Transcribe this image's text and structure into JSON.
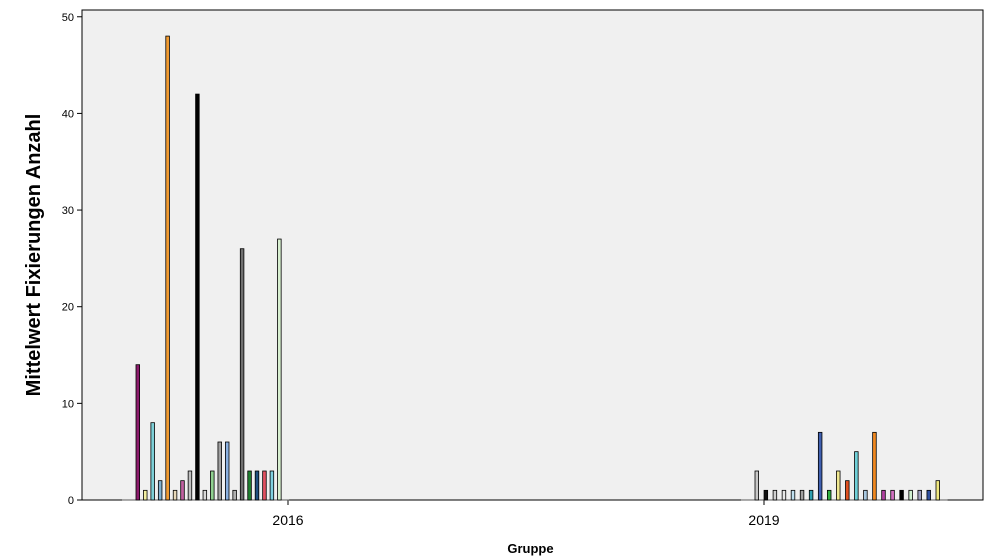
{
  "chart_data": {
    "type": "bar",
    "xlabel": "Gruppe",
    "ylabel": "Mittelwert Fixierungen Anzahl",
    "ylim": [
      0,
      50
    ],
    "yticks": [
      0,
      10,
      20,
      30,
      40,
      50
    ],
    "grid": false,
    "legend": "none",
    "categories": [
      "2016",
      "2019"
    ],
    "bars": [
      {
        "group": "2016",
        "value": 14,
        "color": "#8B1A6B"
      },
      {
        "group": "2016",
        "value": 1,
        "color": "#F2EFA0"
      },
      {
        "group": "2016",
        "value": 8,
        "color": "#7ED0D8"
      },
      {
        "group": "2016",
        "value": 2,
        "color": "#7FB0D0"
      },
      {
        "group": "2016",
        "value": 48,
        "color": "#F09A30"
      },
      {
        "group": "2016",
        "value": 1,
        "color": "#E8D8B8"
      },
      {
        "group": "2016",
        "value": 2,
        "color": "#C060A0"
      },
      {
        "group": "2016",
        "value": 3,
        "color": "#C0C0C0"
      },
      {
        "group": "2016",
        "value": 42,
        "color": "#000000"
      },
      {
        "group": "2016",
        "value": 1,
        "color": "#D8D8D8"
      },
      {
        "group": "2016",
        "value": 3,
        "color": "#90D090"
      },
      {
        "group": "2016",
        "value": 6,
        "color": "#A0A0A0"
      },
      {
        "group": "2016",
        "value": 6,
        "color": "#8AB0E0"
      },
      {
        "group": "2016",
        "value": 1,
        "color": "#B0B0B0"
      },
      {
        "group": "2016",
        "value": 26,
        "color": "#707070"
      },
      {
        "group": "2016",
        "value": 3,
        "color": "#208030"
      },
      {
        "group": "2016",
        "value": 3,
        "color": "#205080"
      },
      {
        "group": "2016",
        "value": 3,
        "color": "#E05060"
      },
      {
        "group": "2016",
        "value": 3,
        "color": "#80D0E0"
      },
      {
        "group": "2016",
        "value": 27,
        "color": "#D8F0D0"
      },
      {
        "group": "2019",
        "value": 3,
        "color": "#C8C8C8"
      },
      {
        "group": "2019",
        "value": 1,
        "color": "#101010"
      },
      {
        "group": "2019",
        "value": 1,
        "color": "#D0D0D0"
      },
      {
        "group": "2019",
        "value": 1,
        "color": "#E8E8E8"
      },
      {
        "group": "2019",
        "value": 1,
        "color": "#C0E0F0"
      },
      {
        "group": "2019",
        "value": 1,
        "color": "#A0A0A0"
      },
      {
        "group": "2019",
        "value": 1,
        "color": "#30A0B0"
      },
      {
        "group": "2019",
        "value": 7,
        "color": "#4060B0"
      },
      {
        "group": "2019",
        "value": 1,
        "color": "#30B040"
      },
      {
        "group": "2019",
        "value": 3,
        "color": "#F0E890"
      },
      {
        "group": "2019",
        "value": 2,
        "color": "#E05020"
      },
      {
        "group": "2019",
        "value": 5,
        "color": "#70D0D8"
      },
      {
        "group": "2019",
        "value": 1,
        "color": "#A8C8E0"
      },
      {
        "group": "2019",
        "value": 7,
        "color": "#F08820"
      },
      {
        "group": "2019",
        "value": 1,
        "color": "#B040A0"
      },
      {
        "group": "2019",
        "value": 1,
        "color": "#D070C0"
      },
      {
        "group": "2019",
        "value": 1,
        "color": "#000000"
      },
      {
        "group": "2019",
        "value": 1,
        "color": "#D0F0D0"
      },
      {
        "group": "2019",
        "value": 1,
        "color": "#A0A0C0"
      },
      {
        "group": "2019",
        "value": 1,
        "color": "#3050A0"
      },
      {
        "group": "2019",
        "value": 2,
        "color": "#F0E880"
      }
    ]
  },
  "colors": {
    "plot_background": "#f0f0f0",
    "page_background": "#ffffff",
    "axis": "#000000"
  }
}
